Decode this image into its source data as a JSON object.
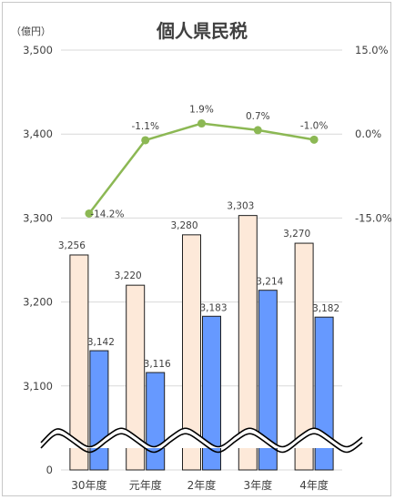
{
  "chart_data": {
    "type": "bar",
    "title": "個人県民税",
    "unit_label": "（億円）",
    "categories": [
      "30年度",
      "元年度",
      "2年度",
      "3年度",
      "4年度"
    ],
    "series": [
      {
        "type": "bar",
        "values": [
          3256,
          3220,
          3280,
          3303,
          3270
        ],
        "labels": [
          "3,256",
          "3,220",
          "3,280",
          "3,303",
          "3,270"
        ]
      },
      {
        "type": "bar",
        "values": [
          3142,
          3116,
          3183,
          3214,
          3182
        ],
        "labels": [
          "3,142",
          "3,116",
          "3,183",
          "3,214",
          "3,182"
        ]
      },
      {
        "type": "line",
        "axis": "right",
        "values": [
          -14.2,
          -1.1,
          1.9,
          0.7,
          -1.0
        ],
        "labels": [
          "-14.2%",
          "-1.1%",
          "1.9%",
          "0.7%",
          "-1.0%"
        ]
      }
    ],
    "y_left": {
      "ticks": [
        "3,500",
        "3,400",
        "3,300",
        "3,200",
        "3,100",
        "0"
      ],
      "range": [
        3000,
        3500
      ],
      "axis_break": true
    },
    "y_right": {
      "ticks": [
        "15.0%",
        "0.0%",
        "-15.0%"
      ],
      "range": [
        -15,
        15
      ]
    },
    "colors": {
      "bar1_fill": "#fde9d9",
      "bar1_stroke": "#1f1f1f",
      "bar2_fill": "#6699ff",
      "bar2_stroke": "#1f1f1f",
      "line": "#8cb854",
      "grid": "#d9d9d9"
    },
    "grid": true
  }
}
